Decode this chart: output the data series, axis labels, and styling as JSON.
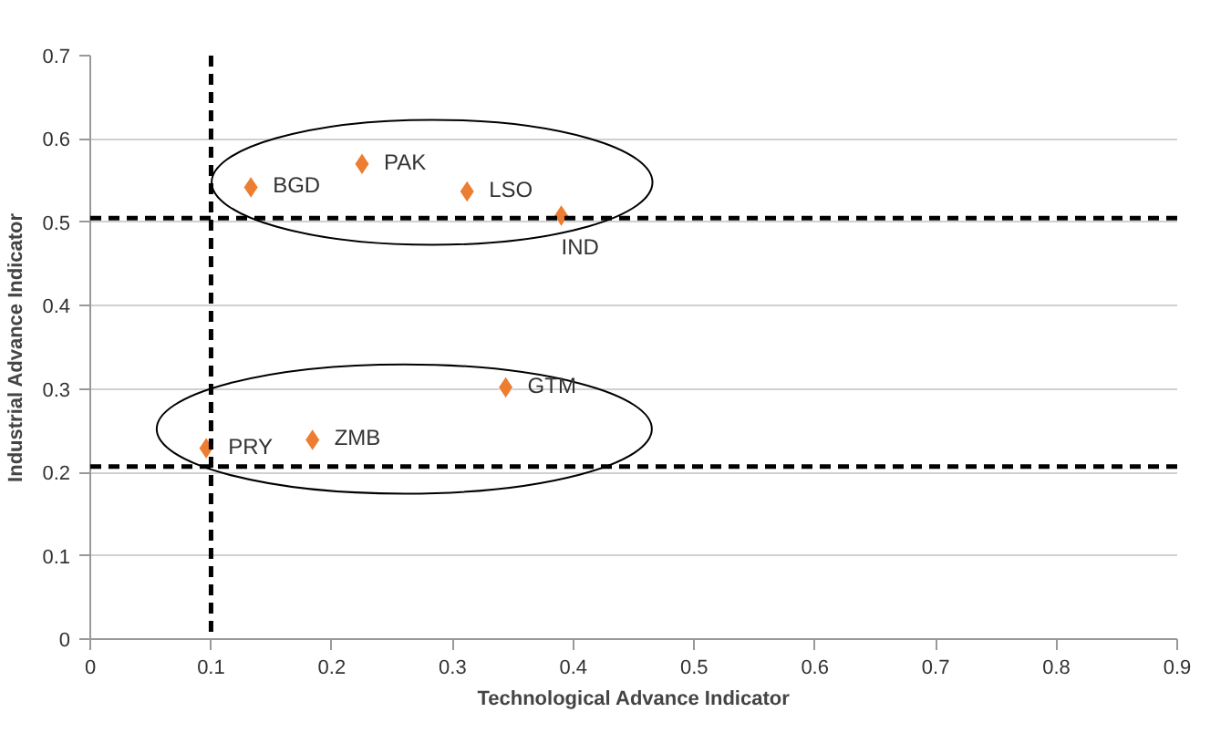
{
  "chart_data": {
    "type": "scatter",
    "xlabel": "Technological Advance Indicator",
    "ylabel": "Industrial Advance Indicator",
    "series": [
      {
        "color": "#ed7d31",
        "x": [
          0.133,
          0.225,
          0.312,
          0.39,
          0.344,
          0.096,
          0.184
        ],
        "values": [
          0.542,
          0.57,
          0.537,
          0.508,
          0.302,
          0.229,
          0.239
        ]
      }
    ],
    "marker": "diamond",
    "grid": "y",
    "xlim": [
      0,
      0.9
    ],
    "xticks": [
      0,
      0.1,
      0.2,
      0.3,
      0.4,
      0.5,
      0.6,
      0.7,
      0.8,
      0.9
    ],
    "ylim": [
      0,
      0.7
    ],
    "yticks": [
      0,
      0.1,
      0.2,
      0.3,
      0.4,
      0.5,
      0.6,
      0.7
    ],
    "ref_lines": [
      {
        "axis": "x",
        "value": 0.1,
        "line_style": "dashed",
        "color": "#000000"
      },
      {
        "axis": "y",
        "value": 0.505,
        "line_style": "dashed",
        "color": "#000000"
      },
      {
        "axis": "y",
        "value": 0.207,
        "line_style": "dashed",
        "color": "#000000"
      }
    ],
    "annotations": [
      {
        "text": "BGD",
        "x": 0.133,
        "y": 0.542
      },
      {
        "text": "PAK",
        "x": 0.225,
        "y": 0.57
      },
      {
        "text": "LSO",
        "x": 0.312,
        "y": 0.537
      },
      {
        "text": "IND",
        "x": 0.39,
        "y": 0.508
      },
      {
        "text": "GTM",
        "x": 0.344,
        "y": 0.302
      },
      {
        "text": "PRY",
        "x": 0.096,
        "y": 0.229
      },
      {
        "text": "ZMB",
        "x": 0.184,
        "y": 0.239
      }
    ]
  }
}
